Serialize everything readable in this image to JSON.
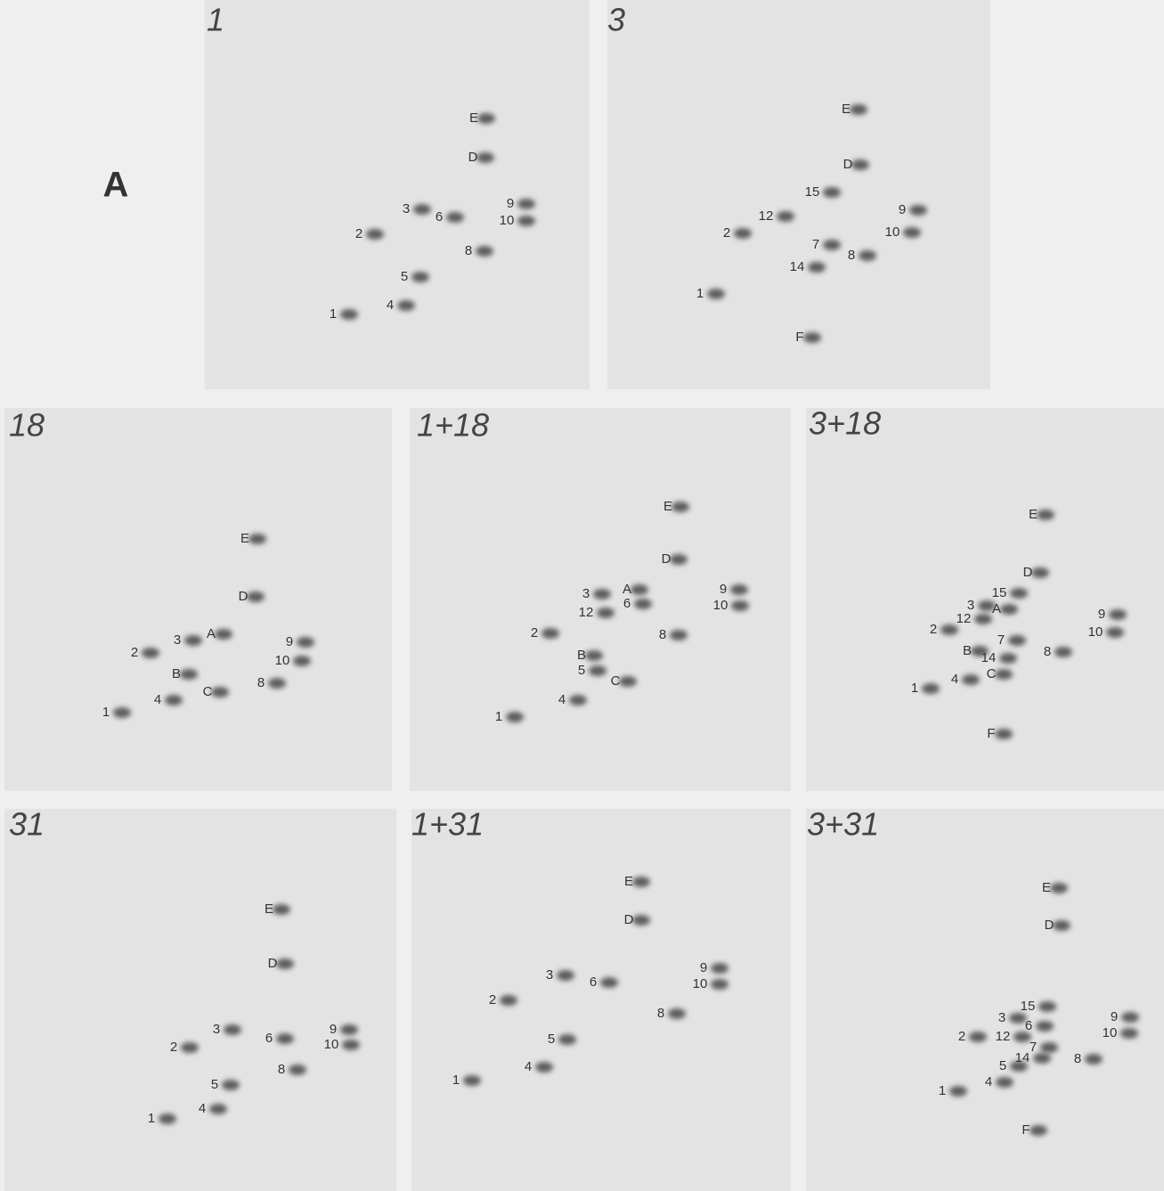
{
  "figure_label": "A",
  "panels": [
    {
      "title": "1",
      "labels": [
        "E",
        "D",
        "3",
        "6",
        "9",
        "10",
        "2",
        "8",
        "5",
        "4",
        "1"
      ]
    },
    {
      "title": "3",
      "labels": [
        "E",
        "D",
        "15",
        "12",
        "9",
        "10",
        "2",
        "7",
        "8",
        "14",
        "1",
        "F"
      ]
    },
    {
      "title": "18",
      "labels": [
        "E",
        "D",
        "A",
        "3",
        "9",
        "2",
        "10",
        "B",
        "8",
        "C",
        "4",
        "1"
      ]
    },
    {
      "title": "1+18",
      "labels": [
        "E",
        "D",
        "9",
        "3",
        "A",
        "6",
        "10",
        "12",
        "2",
        "8",
        "B",
        "5",
        "C",
        "4",
        "1"
      ]
    },
    {
      "title": "3+18",
      "labels": [
        "E",
        "D",
        "15",
        "3",
        "A",
        "12",
        "9",
        "2",
        "10",
        "7",
        "B",
        "8",
        "14",
        "C",
        "4",
        "1",
        "F"
      ]
    },
    {
      "title": "31",
      "labels": [
        "E",
        "D",
        "3",
        "9",
        "6",
        "10",
        "2",
        "8",
        "5",
        "4",
        "1"
      ]
    },
    {
      "title": "1+31",
      "labels": [
        "E",
        "D",
        "9",
        "3",
        "6",
        "10",
        "2",
        "8",
        "5",
        "4",
        "1"
      ]
    },
    {
      "title": "3+31",
      "labels": [
        "E",
        "D",
        "15",
        "9",
        "3",
        "6",
        "10",
        "2",
        "12",
        "7",
        "14",
        "8",
        "5",
        "4",
        "1",
        "F"
      ]
    }
  ]
}
